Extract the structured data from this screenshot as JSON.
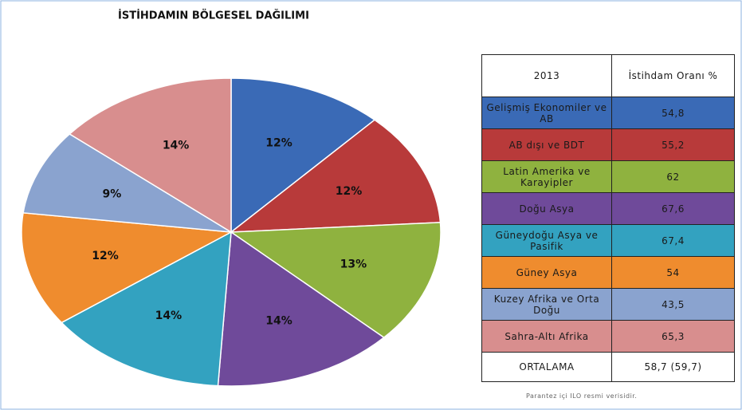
{
  "chart_data": {
    "type": "pie",
    "title": "İSTİHDAMIN BÖLGESEL DAĞILIMI",
    "categories": [
      "Gelişmiş Ekonomiler ve AB",
      "AB dışı ve BDT",
      "Latin Amerika ve Karayipler",
      "Doğu Asya",
      "Güneydoğu Asya ve Pasifik",
      "Güney Asya",
      "Kuzey Afrika ve Orta Doğu",
      "Sahra-Altı Afrika"
    ],
    "values": [
      12,
      12,
      13,
      14,
      14,
      12,
      9,
      14
    ],
    "value_labels": [
      "12%",
      "12%",
      "13%",
      "14%",
      "14%",
      "12%",
      "9%",
      "14%"
    ],
    "colors": [
      "#3a6ab6",
      "#b83a3a",
      "#8fb23f",
      "#6f4a9a",
      "#33a2c0",
      "#ef8c2e",
      "#8aa3cf",
      "#d88e8e"
    ]
  },
  "table": {
    "header": [
      "2013",
      "İstihdam Oranı %"
    ],
    "rows": [
      [
        "Gelişmiş Ekonomiler ve AB",
        "54,8"
      ],
      [
        "AB dışı ve BDT",
        "55,2"
      ],
      [
        "Latin Amerika ve Karayipler",
        "62"
      ],
      [
        "Doğu Asya",
        "67,6"
      ],
      [
        "Güneydoğu Asya ve Pasifik",
        "67,4"
      ],
      [
        "Güney Asya",
        "54"
      ],
      [
        "Kuzey Afrika ve Orta Doğu",
        "43,5"
      ],
      [
        "Sahra-Altı Afrika",
        "65,3"
      ]
    ],
    "footer": [
      "ORTALAMA",
      "58,7 (59,7)"
    ]
  },
  "note": "Parantez içi ILO resmi verisidir."
}
